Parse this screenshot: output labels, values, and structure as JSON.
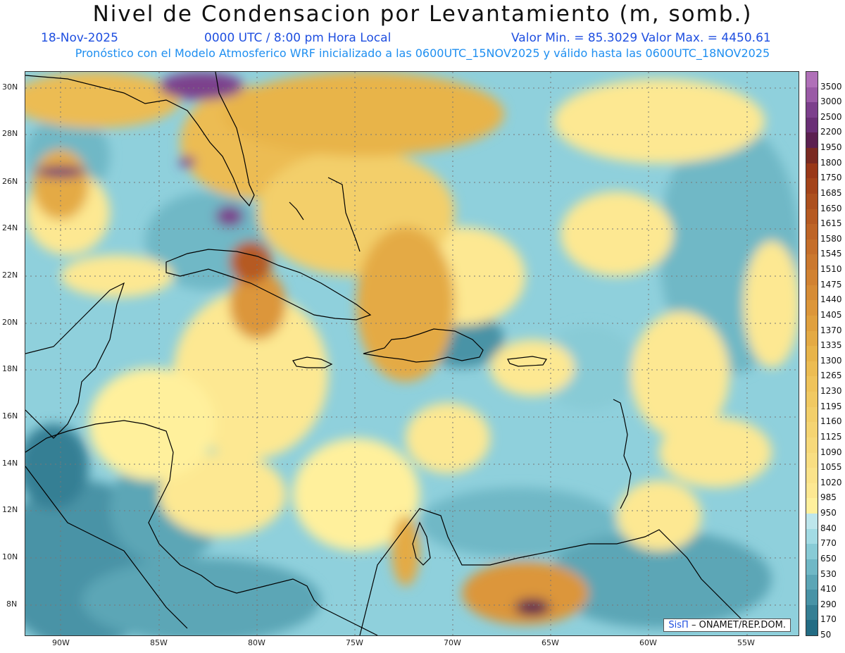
{
  "title": "Nivel de Condensacion por Levantamiento (m, somb.)",
  "date": "18-Nov-2025",
  "time": "0000 UTC / 8:00 pm Hora Local",
  "minmax": "Valor Min. = 85.3029  Valor Max. = 4450.61",
  "info": "Pronóstico con el Modelo Atmosferico WRF inicializado a las 0600UTC_15NOV2025 y válido hasta las  0600UTC_18NOV2025",
  "credit_sis": "SisΠ",
  "credit_rest": " – ONAMET/REP.DOM.",
  "lat_labels": [
    "30N",
    "28N",
    "26N",
    "24N",
    "22N",
    "20N",
    "18N",
    "16N",
    "14N",
    "12N",
    "10N",
    "8N"
  ],
  "lon_labels": [
    "90W",
    "85W",
    "80W",
    "75W",
    "70W",
    "65W",
    "60W",
    "55W"
  ],
  "legend_levels": [
    "3500",
    "3000",
    "2500",
    "2200",
    "1950",
    "1800",
    "1750",
    "1685",
    "1650",
    "1615",
    "1580",
    "1545",
    "1510",
    "1475",
    "1440",
    "1405",
    "1370",
    "1335",
    "1300",
    "1265",
    "1230",
    "1195",
    "1160",
    "1125",
    "1090",
    "1055",
    "1020",
    "985",
    "950",
    "840",
    "770",
    "650",
    "530",
    "410",
    "290",
    "170",
    "50"
  ],
  "legend_colors": [
    "#b070b8",
    "#9a5aa6",
    "#7c3f8c",
    "#6a2f76",
    "#5c2050",
    "#7a2a22",
    "#993818",
    "#a4441a",
    "#ad501e",
    "#b65a22",
    "#be6426",
    "#c56e2a",
    "#cb782e",
    "#d18232",
    "#d68c36",
    "#dc963a",
    "#e0a03e",
    "#e4aa44",
    "#e8b44a",
    "#ecbc52",
    "#efc35a",
    "#f1c962",
    "#f3cf6a",
    "#f5d472",
    "#f7d97a",
    "#f9de82",
    "#fbe38a",
    "#fde892",
    "#fff09c",
    "#bde6ec",
    "#a2dbe4",
    "#88cbd6",
    "#70b8c6",
    "#5ca6b6",
    "#4893a6",
    "#357f94",
    "#236c84"
  ]
}
